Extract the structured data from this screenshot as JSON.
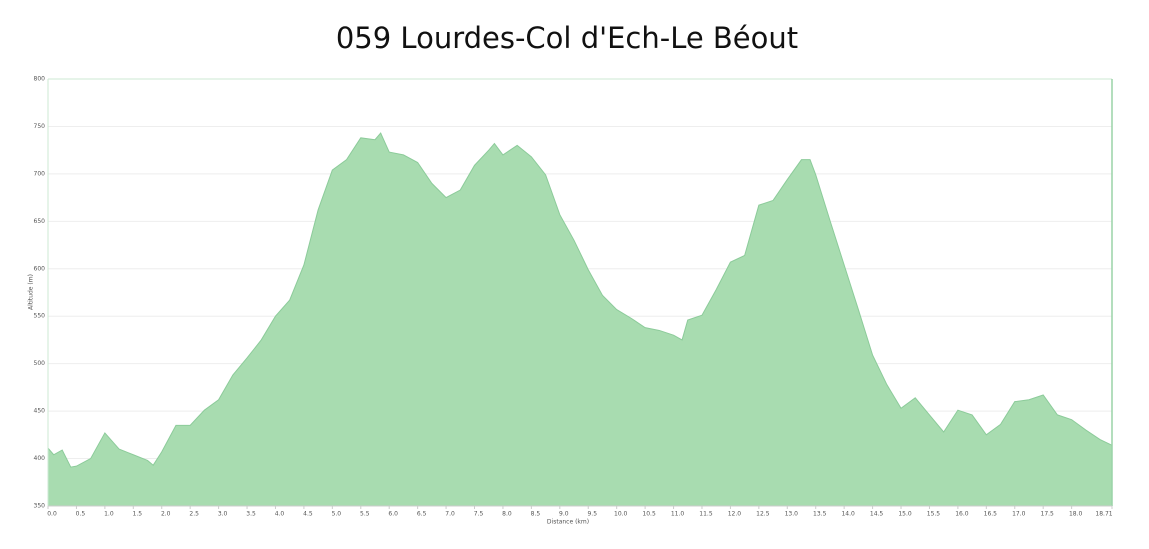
{
  "chart_data": {
    "type": "area",
    "title": "059 Lourdes-Col d'Ech-Le Béout",
    "x_label": "Distance (km)",
    "y_label": "Altitude (m)",
    "color": "#a8dcb0",
    "line_color": "#8ccb9a",
    "grid": true,
    "x": [
      0,
      0.1,
      0.25,
      0.4,
      0.5,
      0.75,
      1.0,
      1.25,
      1.5,
      1.75,
      1.85,
      2.0,
      2.25,
      2.5,
      2.75,
      3.0,
      3.25,
      3.5,
      3.75,
      4.0,
      4.25,
      4.5,
      4.75,
      5.0,
      5.25,
      5.5,
      5.75,
      5.85,
      6.0,
      6.25,
      6.5,
      6.75,
      7.0,
      7.25,
      7.5,
      7.75,
      7.85,
      8.0,
      8.25,
      8.5,
      8.75,
      9.0,
      9.25,
      9.5,
      9.75,
      10.0,
      10.25,
      10.5,
      10.75,
      11.0,
      11.15,
      11.25,
      11.5,
      11.75,
      12.0,
      12.25,
      12.5,
      12.75,
      13.0,
      13.25,
      13.4,
      13.5,
      13.75,
      14.0,
      14.25,
      14.5,
      14.75,
      15.0,
      15.25,
      15.5,
      15.75,
      16.0,
      16.25,
      16.5,
      16.75,
      17.0,
      17.25,
      17.5,
      17.75,
      18.0,
      18.25,
      18.5,
      18.71
    ],
    "values": [
      411,
      404,
      409,
      391,
      392,
      400,
      427,
      410,
      404,
      398,
      393,
      407,
      435,
      435,
      451,
      462,
      488,
      506,
      525,
      550,
      567,
      604,
      662,
      704,
      715,
      738,
      736,
      743,
      723,
      720,
      712,
      690,
      675,
      683,
      709,
      725,
      732,
      720,
      730,
      718,
      699,
      657,
      630,
      599,
      572,
      557,
      548,
      538,
      535,
      530,
      525,
      546,
      551,
      578,
      607,
      614,
      667,
      672,
      694,
      715,
      715,
      699,
      651,
      604,
      557,
      509,
      478,
      453,
      464,
      446,
      428,
      451,
      446,
      425,
      436,
      460,
      462,
      467,
      446,
      441,
      430,
      420,
      414
    ],
    "xlim": [
      0,
      18.71
    ],
    "ylim": [
      350,
      800
    ],
    "yticks": [
      350,
      400,
      450,
      500,
      550,
      600,
      650,
      700,
      750,
      800
    ],
    "xticks": [
      {
        "value": 0,
        "label": "0.0"
      },
      0.5,
      {
        "value": 1,
        "label": "1.0"
      },
      1.5,
      {
        "value": 2,
        "label": "2.0"
      },
      2.5,
      {
        "value": 3,
        "label": "3.0"
      },
      3.5,
      {
        "value": 4,
        "label": "4.0"
      },
      4.5,
      {
        "value": 5,
        "label": "5.0"
      },
      5.5,
      {
        "value": 6,
        "label": "6.0"
      },
      6.5,
      {
        "value": 7,
        "label": "7.0"
      },
      7.5,
      {
        "value": 8,
        "label": "8.0"
      },
      8.5,
      {
        "value": 9,
        "label": "9.0"
      },
      9.5,
      {
        "value": 10,
        "label": "10.0"
      },
      10.5,
      {
        "value": 11,
        "label": "11.0"
      },
      11.5,
      {
        "value": 12,
        "label": "12.0"
      },
      12.5,
      {
        "value": 13,
        "label": "13.0"
      },
      13.5,
      {
        "value": 14,
        "label": "14.0"
      },
      14.5,
      {
        "value": 15,
        "label": "15.0"
      },
      15.5,
      {
        "value": 16,
        "label": "16.0"
      },
      16.5,
      {
        "value": 17,
        "label": "17.0"
      },
      17.5,
      {
        "value": 18,
        "label": "18.0"
      },
      18.71
    ]
  }
}
